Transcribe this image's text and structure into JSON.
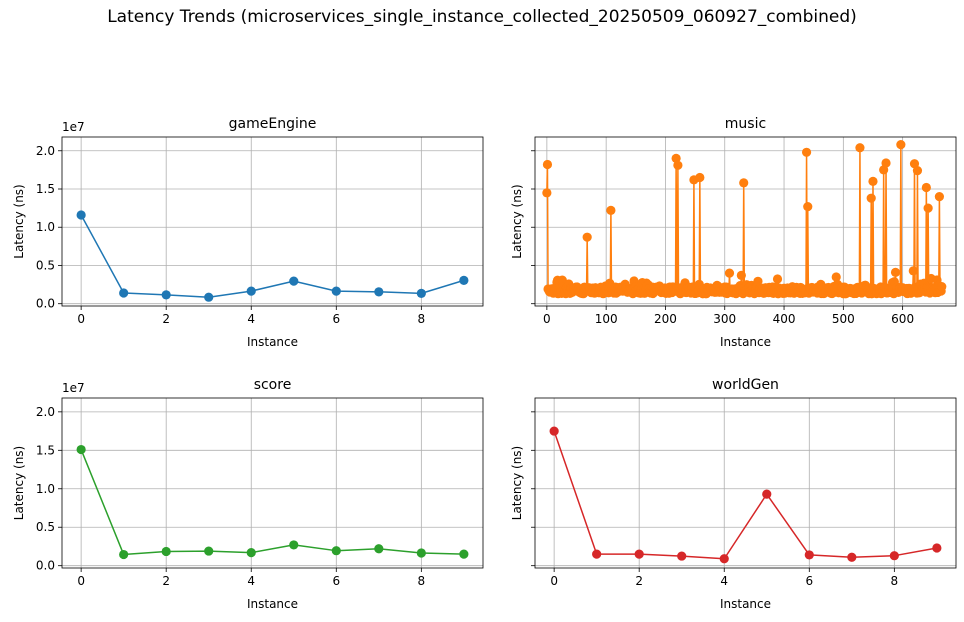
{
  "figure": {
    "suptitle": "Latency Trends (microservices_single_instance_collected_20250509_060927_combined)"
  },
  "chart_data": [
    {
      "type": "line",
      "title": "gameEngine",
      "xlabel": "Instance",
      "ylabel": "Latency (ns)",
      "y_offset_label": "1e7",
      "color": "#1f77b4",
      "xlim": [
        -0.45,
        9.45
      ],
      "ylim": [
        -0.3,
        21.8
      ],
      "x_ticks": [
        0,
        2,
        4,
        6,
        8
      ],
      "y_ticks": [
        0.0,
        0.5,
        1.0,
        1.5,
        2.0
      ],
      "y_scale_exponent": 7,
      "x": [
        0,
        1,
        2,
        3,
        4,
        5,
        6,
        7,
        8,
        9
      ],
      "y": [
        11.6,
        1.4,
        1.15,
        0.85,
        1.65,
        2.95,
        1.65,
        1.55,
        1.35,
        3.05
      ]
    },
    {
      "type": "line",
      "title": "music",
      "xlabel": "Instance",
      "ylabel": "Latency (ns)",
      "color": "#ff7f0e",
      "xlim": [
        -20,
        690
      ],
      "ylim": [
        -0.3,
        21.8
      ],
      "x_ticks": [
        0,
        100,
        200,
        300,
        400,
        500,
        600
      ],
      "y_ticks": [
        0.0,
        0.5,
        1.0,
        1.5,
        2.0
      ],
      "y_scale_exponent": 7,
      "baseline": {
        "count": 667,
        "center": 1.75,
        "spread": 0.45
      },
      "spikes": [
        [
          0,
          14.5
        ],
        [
          1,
          18.2
        ],
        [
          68,
          8.7
        ],
        [
          108,
          12.2
        ],
        [
          218,
          19.0
        ],
        [
          221,
          18.1
        ],
        [
          248,
          16.2
        ],
        [
          258,
          16.5
        ],
        [
          308,
          4.0
        ],
        [
          328,
          3.7
        ],
        [
          332,
          15.8
        ],
        [
          438,
          19.8
        ],
        [
          440,
          12.7
        ],
        [
          488,
          3.5
        ],
        [
          528,
          20.4
        ],
        [
          547,
          13.8
        ],
        [
          550,
          16.0
        ],
        [
          568,
          17.5
        ],
        [
          572,
          18.4
        ],
        [
          588,
          4.1
        ],
        [
          597,
          20.8
        ],
        [
          618,
          4.3
        ],
        [
          620,
          18.3
        ],
        [
          625,
          17.4
        ],
        [
          640,
          15.2
        ],
        [
          643,
          12.5
        ],
        [
          648,
          3.3
        ],
        [
          658,
          3.1
        ],
        [
          662,
          14.0
        ]
      ]
    },
    {
      "type": "line",
      "title": "score",
      "xlabel": "Instance",
      "ylabel": "Latency (ns)",
      "y_offset_label": "1e7",
      "color": "#2ca02c",
      "xlim": [
        -0.45,
        9.45
      ],
      "ylim": [
        -0.3,
        21.8
      ],
      "x_ticks": [
        0,
        2,
        4,
        6,
        8
      ],
      "y_ticks": [
        0.0,
        0.5,
        1.0,
        1.5,
        2.0
      ],
      "y_scale_exponent": 7,
      "x": [
        0,
        1,
        2,
        3,
        4,
        5,
        6,
        7,
        8,
        9
      ],
      "y": [
        15.1,
        1.45,
        1.85,
        1.9,
        1.7,
        2.7,
        1.95,
        2.2,
        1.65,
        1.5
      ]
    },
    {
      "type": "line",
      "title": "worldGen",
      "xlabel": "Instance",
      "ylabel": "Latency (ns)",
      "color": "#d62728",
      "xlim": [
        -0.45,
        9.45
      ],
      "ylim": [
        -0.3,
        21.8
      ],
      "x_ticks": [
        0,
        2,
        4,
        6,
        8
      ],
      "y_ticks": [
        0.0,
        0.5,
        1.0,
        1.5,
        2.0
      ],
      "y_scale_exponent": 7,
      "x": [
        0,
        1,
        2,
        3,
        4,
        5,
        6,
        7,
        8,
        9
      ],
      "y": [
        17.5,
        1.5,
        1.5,
        1.25,
        0.9,
        9.3,
        1.4,
        1.1,
        1.3,
        2.3
      ]
    }
  ]
}
